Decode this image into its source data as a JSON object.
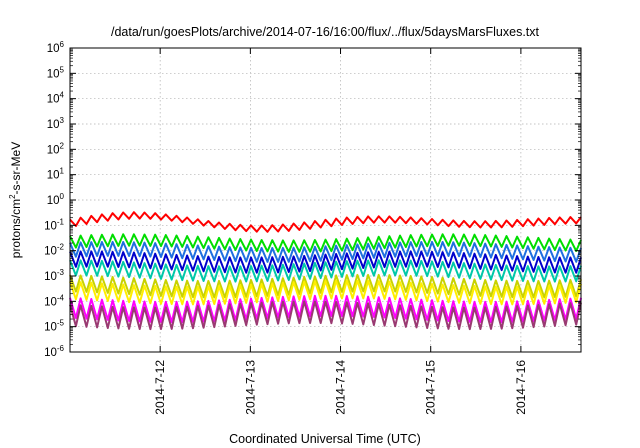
{
  "chart_data": {
    "type": "line",
    "title": "/data/run/goesPlots/archive/2014-07-16/16:00/flux/../flux/5daysMarsFluxes.txt",
    "xlabel": "Coordinated Universal Time (UTC)",
    "ylabel_main": "protons/cm",
    "ylabel_sup": "2",
    "ylabel_tail": "-s-sr-MeV",
    "yscale": "log",
    "ylim_exp": [
      -6,
      6
    ],
    "y_tick_exponents": [
      6,
      5,
      4,
      3,
      2,
      1,
      0,
      -1,
      -2,
      -3,
      -4,
      -5,
      -6
    ],
    "y_tick_base": "10",
    "xlim": [
      "2014-07-11T00:00",
      "2014-07-16T16:00"
    ],
    "x_ticks": [
      {
        "label": "2014-7-12",
        "at": "2014-07-12T00:00"
      },
      {
        "label": "2014-7-13",
        "at": "2014-07-13T00:00"
      },
      {
        "label": "2014-7-14",
        "at": "2014-07-14T00:00"
      },
      {
        "label": "2014-7-15",
        "at": "2014-07-15T00:00"
      },
      {
        "label": "2014-7-16",
        "at": "2014-07-16T00:00"
      }
    ],
    "grid": true,
    "series_shape": {
      "sawtooth_cycles": 48
    },
    "series": [
      {
        "color": "#ff0000",
        "base_log": -0.9,
        "amplitude": 0.25
      },
      {
        "color": "#00dd00",
        "base_log": -1.7,
        "amplitude": 0.45
      },
      {
        "color": "#1f6fe0",
        "base_log": -2.05,
        "amplitude": 0.55
      },
      {
        "color": "#0000cc",
        "base_log": -2.45,
        "amplitude": 0.6
      },
      {
        "color": "#00c8a8",
        "base_log": -2.8,
        "amplitude": 0.6
      },
      {
        "color": "#c8d200",
        "base_log": -3.4,
        "amplitude": 0.65
      },
      {
        "color": "#ffee00",
        "base_log": -3.65,
        "amplitude": 0.7
      },
      {
        "color": "#ff00ff",
        "base_log": -4.3,
        "amplitude": 0.8
      },
      {
        "color": "#9a3a72",
        "base_log": -4.55,
        "amplitude": 0.85
      }
    ]
  }
}
